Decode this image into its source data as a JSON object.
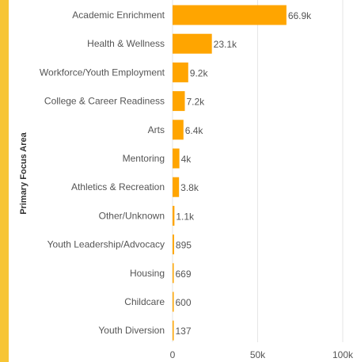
{
  "colors": {
    "bar": "#FFA500",
    "accent_bar": "#F7C535",
    "grid": "#E6E6E6",
    "text": "#555555"
  },
  "chart_data": {
    "type": "bar",
    "orientation": "horizontal",
    "ylabel": "Primary Focus Area",
    "xlim": [
      0,
      100000
    ],
    "x_ticks": [
      0,
      50000,
      100000
    ],
    "x_tick_labels": [
      "0",
      "50k",
      "100k"
    ],
    "grid": true,
    "categories": [
      "Academic Enrichment",
      "Health & Wellness",
      "Workforce/Youth Employment",
      "College & Career Readiness",
      "Arts",
      "Mentoring",
      "Athletics & Recreation",
      "Other/Unknown",
      "Youth Leadership/Advocacy",
      "Housing",
      "Childcare",
      "Youth Diversion"
    ],
    "values": [
      66900,
      23100,
      9200,
      7200,
      6400,
      4000,
      3800,
      1100,
      895,
      669,
      600,
      137
    ],
    "value_labels": [
      "66.9k",
      "23.1k",
      "9.2k",
      "7.2k",
      "6.4k",
      "4k",
      "3.8k",
      "1.1k",
      "895",
      "669",
      "600",
      "137"
    ]
  }
}
